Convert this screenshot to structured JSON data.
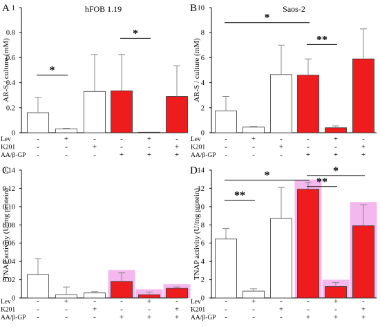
{
  "colors": {
    "control": "#ffffff",
    "treated": "#ee1c1c",
    "highlight": "#f4b8ee",
    "edge": "#333333"
  },
  "conditions": {
    "labels": [
      "Lev",
      "K201",
      "AA/β-GP"
    ],
    "rows": [
      [
        "-",
        "+",
        "-",
        "-",
        "+",
        "-"
      ],
      [
        "-",
        "-",
        "+",
        "-",
        "-",
        "+"
      ],
      [
        "-",
        "-",
        "-",
        "+",
        "+",
        "+"
      ]
    ]
  },
  "chart_data": [
    {
      "type": "bar",
      "panel": "A",
      "title": "hFOB 1.19",
      "ylabel": "AR-S / culture (mM)",
      "ylim": [
        0,
        1
      ],
      "yticks": [
        0,
        0.2,
        0.4,
        0.6,
        0.8,
        1
      ],
      "ytick_labels": [
        "0",
        "0.2",
        "0.4",
        "0.6",
        "0.8",
        "1"
      ],
      "values": [
        0.16,
        0.03,
        0.33,
        0.335,
        0.004,
        0.29
      ],
      "errors": [
        0.12,
        0.005,
        0.295,
        0.29,
        0.0,
        0.245
      ],
      "fills": [
        "control",
        "control",
        "control",
        "treated",
        "treated",
        "treated"
      ],
      "highlighted": [
        false,
        false,
        false,
        false,
        false,
        false
      ],
      "annotations": [
        {
          "from": 0,
          "to": 1,
          "y": 0.46,
          "label": "*"
        },
        {
          "from": 3,
          "to": 4,
          "y": 0.755,
          "label": "*"
        }
      ]
    },
    {
      "type": "bar",
      "panel": "B",
      "title": "Saos-2",
      "ylabel": "AR-S / culture (mM)",
      "ylim": [
        0,
        10
      ],
      "yticks": [
        0,
        2,
        4,
        6,
        8,
        10
      ],
      "ytick_labels": [
        "0",
        "2",
        "4",
        "6",
        "8",
        "10"
      ],
      "values": [
        1.75,
        0.45,
        4.65,
        4.6,
        0.4,
        5.9
      ],
      "errors": [
        1.15,
        0.05,
        2.35,
        1.3,
        0.15,
        2.4
      ],
      "fills": [
        "control",
        "control",
        "control",
        "treated",
        "treated",
        "treated"
      ],
      "highlighted": [
        false,
        false,
        false,
        false,
        false,
        false
      ],
      "annotations": [
        {
          "from": 0,
          "to": 3,
          "y": 8.8,
          "label": "*"
        },
        {
          "from": 3,
          "to": 4,
          "y": 7.05,
          "label": "**"
        }
      ]
    },
    {
      "type": "bar",
      "panel": "C",
      "title": "",
      "ylabel": "TNAP activity (U/mg protein)",
      "ylim": [
        0,
        0.14
      ],
      "yticks": [
        0,
        0.02,
        0.04,
        0.06,
        0.08,
        0.1,
        0.12,
        0.14
      ],
      "ytick_labels": [
        "0",
        "0.02",
        "0.04",
        "0.06",
        "0.08",
        "0.10",
        "0.12",
        "0.14"
      ],
      "values": [
        0.0255,
        0.0035,
        0.0055,
        0.018,
        0.0035,
        0.0105
      ],
      "errors": [
        0.0175,
        0.0085,
        0.0015,
        0.0095,
        0.003,
        0.0015
      ],
      "fills": [
        "control",
        "control",
        "control",
        "treated",
        "treated",
        "treated"
      ],
      "highlighted": [
        false,
        false,
        false,
        true,
        true,
        true
      ],
      "annotations": []
    },
    {
      "type": "bar",
      "panel": "D",
      "title": "",
      "ylabel": "TNAP activity (U/mg protein)",
      "ylim": [
        0,
        14
      ],
      "yticks": [
        0,
        2,
        4,
        6,
        8,
        10,
        12,
        14
      ],
      "ytick_labels": [
        "0",
        "2",
        "4",
        "6",
        "8",
        "10",
        "12",
        "14"
      ],
      "values": [
        6.45,
        0.75,
        8.7,
        11.9,
        1.25,
        7.9
      ],
      "errors": [
        1.15,
        0.25,
        3.4,
        0.75,
        0.45,
        2.3
      ],
      "fills": [
        "control",
        "control",
        "control",
        "treated",
        "treated",
        "treated"
      ],
      "highlighted": [
        false,
        false,
        false,
        true,
        true,
        true
      ],
      "annotations": [
        {
          "from": 0,
          "to": 1,
          "y": 10.7,
          "label": "**"
        },
        {
          "from": 0,
          "to": 3,
          "y": 12.9,
          "label": "*"
        },
        {
          "from": 3,
          "to": 4,
          "y": 12.2,
          "label": "**"
        },
        {
          "from": 3,
          "to": 5,
          "y": 13.4,
          "label": "*"
        }
      ]
    }
  ]
}
